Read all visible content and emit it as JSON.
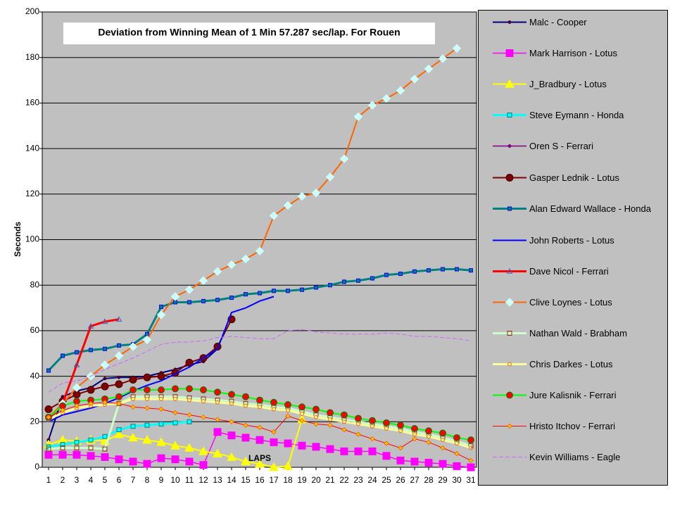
{
  "chart_data": {
    "type": "line",
    "title": "Deviation from Winning Mean of 1 Min 57.287 sec/lap. For Rouen",
    "y_label": "Seconds",
    "x_label": "LAPS",
    "categories": [
      1,
      2,
      3,
      4,
      5,
      6,
      7,
      8,
      9,
      10,
      11,
      12,
      13,
      14,
      15,
      16,
      17,
      18,
      19,
      20,
      21,
      22,
      23,
      24,
      25,
      26,
      27,
      28,
      29,
      30,
      31
    ],
    "ylim": [
      0,
      200
    ],
    "yticks": [
      0,
      20,
      40,
      60,
      80,
      100,
      120,
      140,
      160,
      180,
      200
    ],
    "grid": true,
    "background": "#c0c0c0",
    "legend": "right",
    "series": [
      {
        "name": "Malc - Cooper",
        "color": "#000080",
        "marker": "dot",
        "marker_fill": "#000080",
        "marker_stroke": "#800000",
        "values": [
          12,
          31,
          33.5,
          35,
          39,
          39.5,
          39.5,
          40,
          41.5,
          43,
          45,
          46.5,
          52,
          null,
          null,
          null,
          null,
          null,
          null,
          null,
          null,
          null,
          null,
          null,
          null,
          null,
          null,
          null,
          null,
          null,
          null
        ]
      },
      {
        "name": "Mark Harrison - Lotus",
        "color": "#ff00ff",
        "marker": "square",
        "marker_fill": "#ff00ff",
        "marker_stroke": "#ff00ff",
        "values": [
          5.5,
          5.5,
          5.5,
          5,
          4.5,
          3.5,
          2.5,
          1.5,
          4,
          3.5,
          2.5,
          1,
          15.5,
          14,
          13,
          12,
          11,
          10.5,
          9.5,
          9,
          8,
          7,
          7,
          7,
          5,
          3,
          2.5,
          2,
          1.5,
          0.5,
          0
        ]
      },
      {
        "name": "J_Bradbury - Lotus",
        "color": "#ffff00",
        "marker": "triangle",
        "marker_fill": "#ffff00",
        "marker_stroke": "#ffff00",
        "values": [
          10,
          12,
          11.5,
          12,
          11.5,
          14.5,
          13,
          12,
          11,
          9.5,
          8.5,
          7,
          6,
          4.5,
          2.5,
          1.5,
          0,
          0.5,
          21,
          null,
          null,
          null,
          null,
          null,
          null,
          null,
          null,
          null,
          null,
          null,
          null
        ]
      },
      {
        "name": "Steve Eymann - Honda",
        "color": "#00ffff",
        "marker": "square",
        "marker_fill": "#00ffff",
        "marker_stroke": "#008080",
        "values": [
          9,
          10,
          11,
          12,
          13.5,
          16.5,
          18,
          18.5,
          19,
          19.5,
          20,
          null,
          null,
          null,
          null,
          null,
          null,
          null,
          null,
          null,
          null,
          null,
          null,
          null,
          null,
          null,
          null,
          null,
          null,
          null,
          null
        ]
      },
      {
        "name": "Oren S - Ferrari",
        "color": "#800080",
        "marker": "dot",
        "marker_fill": "#800080",
        "marker_stroke": "#800080",
        "values": [
          22,
          27,
          null,
          null,
          null,
          null,
          null,
          null,
          null,
          null,
          null,
          null,
          null,
          null,
          null,
          null,
          null,
          null,
          null,
          null,
          null,
          null,
          null,
          null,
          null,
          null,
          null,
          null,
          null,
          null,
          null
        ]
      },
      {
        "name": "Gasper Lednik - Lotus",
        "color": "#800000",
        "marker": "circle",
        "marker_fill": "#800000",
        "marker_stroke": "#400000",
        "values": [
          25.5,
          29,
          32,
          34,
          35.5,
          36.5,
          38.5,
          39.5,
          40,
          41.5,
          46,
          48,
          53,
          65,
          null,
          null,
          null,
          null,
          null,
          null,
          null,
          null,
          null,
          null,
          null,
          null,
          null,
          null,
          null,
          null,
          null
        ]
      },
      {
        "name": "Alan Edward Wallace - Honda",
        "color": "#008080",
        "marker": "square",
        "marker_fill": "#008080",
        "marker_stroke": "#0000ff",
        "values": [
          42.5,
          49,
          50.5,
          51.5,
          52,
          53.5,
          54,
          58.5,
          70.5,
          72.5,
          72.5,
          73,
          73.5,
          74.5,
          76,
          76.5,
          77.5,
          77.5,
          78,
          79,
          80,
          81.5,
          82,
          83,
          84.5,
          85,
          86,
          86.5,
          87,
          87,
          86.5
        ]
      },
      {
        "name": "John Roberts - Lotus",
        "color": "#0000ff",
        "marker": "none",
        "marker_fill": "#0000ff",
        "marker_stroke": "#0000ff",
        "values": [
          20,
          23,
          24.5,
          26,
          28,
          30.5,
          33.5,
          36,
          38,
          41,
          44,
          48,
          52,
          68,
          70,
          73,
          75,
          null,
          null,
          null,
          null,
          null,
          null,
          null,
          null,
          null,
          null,
          null,
          null,
          null,
          null
        ]
      },
      {
        "name": "Dave Nicol - Ferrari",
        "color": "#ff0000",
        "marker": "triangle",
        "marker_fill": "none",
        "marker_stroke": "#4060c0",
        "values": [
          21,
          28,
          45,
          62,
          64,
          65,
          null,
          null,
          null,
          null,
          null,
          null,
          null,
          null,
          null,
          null,
          null,
          null,
          null,
          null,
          null,
          null,
          null,
          null,
          null,
          null,
          null,
          null,
          null,
          null,
          null
        ]
      },
      {
        "name": "Clive Loynes - Lotus",
        "color": "#ff6600",
        "marker": "diamond",
        "marker_fill": "#ccffff",
        "marker_stroke": "#ccffff",
        "values": [
          22,
          28,
          35,
          40,
          45,
          49,
          53,
          56,
          67,
          75,
          78,
          82,
          86,
          89,
          91.5,
          95,
          110.5,
          115,
          119,
          120.5,
          127.5,
          135.5,
          154,
          159,
          162,
          165.5,
          170.5,
          175,
          179.5,
          184,
          null
        ]
      },
      {
        "name": "Nathan Wald - Brabham",
        "color": "#ccffcc",
        "marker": "square",
        "marker_fill": "none",
        "marker_stroke": "#993300",
        "values": [
          8,
          8.5,
          8.5,
          8.5,
          8,
          28,
          31,
          31,
          31,
          31,
          30.5,
          30,
          29.5,
          29,
          28,
          27.5,
          26.5,
          26,
          24.5,
          23,
          22,
          21,
          20,
          19,
          18,
          17,
          15.5,
          14.5,
          13,
          11.5,
          9.5
        ]
      },
      {
        "name": "Chris Darkes - Lotus",
        "color": "#ffff99",
        "marker": "circle",
        "marker_fill": "none",
        "marker_stroke": "#ff6600",
        "values": [
          21,
          24,
          26,
          27,
          27.5,
          28,
          30,
          30,
          30,
          30,
          29.5,
          29,
          28.5,
          28,
          27,
          26.5,
          25.5,
          25,
          23.5,
          22,
          21,
          20,
          19,
          18,
          17,
          16,
          14.5,
          13.5,
          12,
          10.5,
          8.5
        ]
      },
      {
        "name": "Jure Kalisnik - Ferrari",
        "color": "#00ff00",
        "marker": "circle",
        "marker_fill": "#ff0000",
        "marker_stroke": "#008000",
        "values": [
          22,
          27,
          29,
          29.5,
          30,
          31,
          34,
          34,
          34,
          34.5,
          34.5,
          34,
          33,
          32,
          31,
          29.5,
          28.5,
          27.5,
          26.5,
          25.5,
          24,
          23,
          21.5,
          20.5,
          19.5,
          18.5,
          17,
          16,
          15,
          13,
          12
        ]
      },
      {
        "name": "Hristo Itchov - Ferrari",
        "color": "#ff0000",
        "marker": "diamond",
        "marker_fill": "#ffcc00",
        "marker_stroke": "#ff6600",
        "values": [
          22,
          25,
          27,
          28,
          28.5,
          28,
          26.5,
          26,
          25.5,
          24,
          23,
          22,
          21,
          20,
          18.5,
          17.5,
          15.5,
          22.5,
          20.5,
          19,
          18.5,
          16.5,
          14.5,
          12.5,
          10.5,
          8.5,
          12.5,
          11,
          8.5,
          6,
          3
        ]
      },
      {
        "name": "Kevin Williams - Eagle",
        "color": "#cc66ff",
        "marker": "none",
        "dash": true,
        "marker_fill": "#cc66ff",
        "marker_stroke": "#cc66ff",
        "values": [
          33,
          37,
          38,
          40,
          43,
          45.5,
          48,
          51,
          54,
          55,
          55,
          55.5,
          57,
          57.5,
          57,
          56.5,
          56.5,
          60,
          60.5,
          59.5,
          59,
          58.5,
          58.5,
          58.5,
          59,
          58.5,
          57.5,
          57.5,
          57,
          56.5,
          55.5
        ]
      }
    ]
  }
}
